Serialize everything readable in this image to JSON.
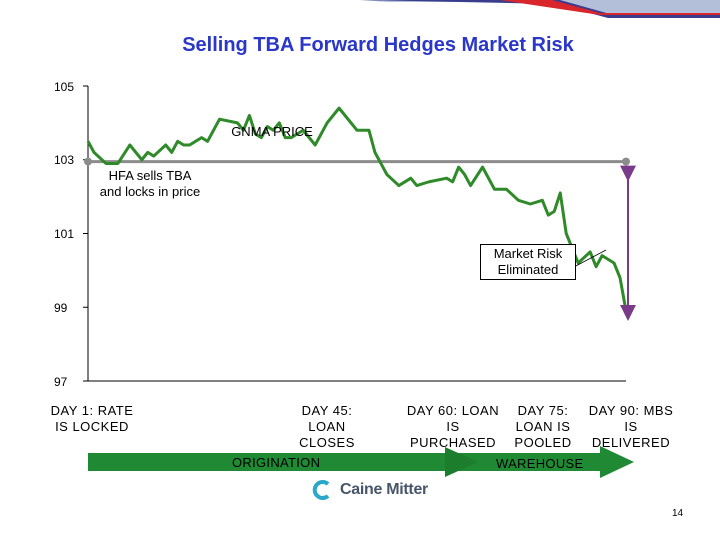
{
  "colors": {
    "title": "#2a37c8",
    "price_line": "#2f8a2a",
    "hedge_line": "#8c8c8c",
    "risk_arrow": "#7a3a8a",
    "timeline_arrow": "#1f8a33"
  },
  "chart_data": {
    "type": "line",
    "title": "Selling TBA Forward Hedges Market Risk",
    "ylim": [
      97,
      105
    ],
    "y_ticks": [
      "105",
      "103",
      "101",
      "99",
      "97"
    ],
    "x_range_days": [
      0,
      90
    ],
    "series": [
      {
        "name": "GNMA PRICE",
        "x": [
          0,
          1,
          3,
          5,
          7,
          8,
          9,
          10,
          11,
          13,
          14,
          15,
          16,
          17,
          18,
          19,
          20,
          21,
          22,
          25,
          26,
          27,
          28,
          29,
          30,
          31,
          32,
          33,
          34,
          35,
          36,
          38,
          40,
          42,
          43,
          45,
          47,
          48,
          49,
          50,
          52,
          54,
          55,
          57,
          60,
          61,
          62,
          63,
          64,
          66,
          68,
          70,
          72,
          74,
          76,
          77,
          78,
          79,
          80,
          82,
          84,
          85,
          86,
          88,
          89,
          90
        ],
        "values": [
          103.5,
          103.2,
          102.9,
          102.9,
          103.4,
          103.2,
          103.0,
          103.2,
          103.1,
          103.4,
          103.2,
          103.5,
          103.4,
          103.4,
          103.5,
          103.6,
          103.5,
          103.8,
          104.1,
          104.0,
          103.8,
          104.2,
          103.7,
          103.6,
          103.9,
          103.8,
          104.0,
          103.6,
          103.6,
          103.7,
          103.8,
          103.4,
          104.0,
          104.4,
          104.2,
          103.8,
          103.8,
          103.2,
          102.9,
          102.6,
          102.3,
          102.5,
          102.3,
          102.4,
          102.5,
          102.4,
          102.8,
          102.6,
          102.3,
          102.8,
          102.2,
          102.2,
          101.9,
          101.8,
          101.9,
          101.5,
          101.6,
          102.1,
          101.0,
          100.2,
          100.5,
          100.1,
          100.4,
          100.2,
          99.8,
          98.9
        ]
      },
      {
        "name": "TBA hedge (locked price)",
        "x": [
          0,
          90
        ],
        "values": [
          102.95,
          102.95
        ]
      }
    ],
    "annotations": {
      "gnma": "GNMA PRICE",
      "hfa": "HFA sells TBA and locks in price",
      "market_risk": "Market Risk Eliminated"
    },
    "x_labels": [
      "DAY 1: RATE IS LOCKED",
      "DAY 45: LOAN CLOSES",
      "DAY 60: LOAN IS PURCHASED",
      "DAY 75: LOAN IS POOLED",
      "DAY 90: MBS IS DELIVERED"
    ],
    "phases": [
      "ORIGINATION",
      "WAREHOUSE"
    ]
  },
  "footer": {
    "logo_text": "Caine Mitter",
    "page_number": "14"
  }
}
